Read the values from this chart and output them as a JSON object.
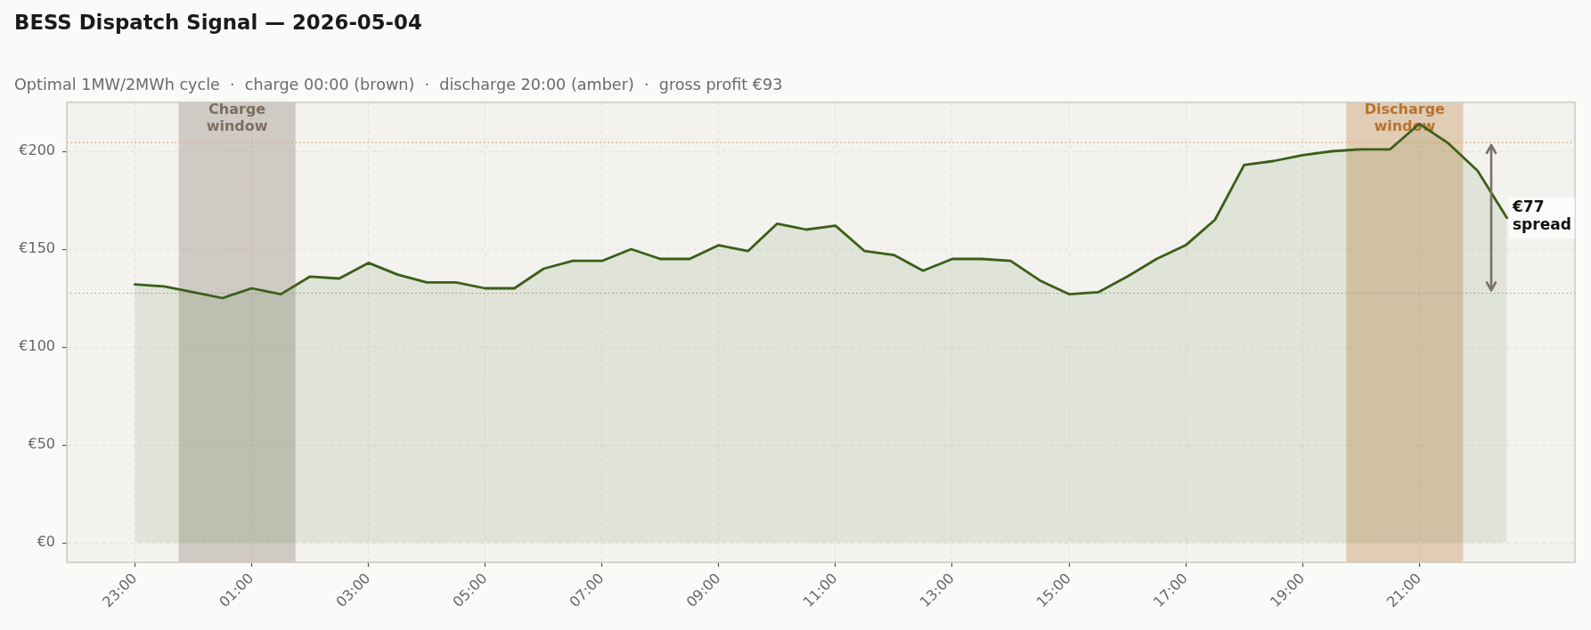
{
  "chart_data": {
    "type": "area",
    "title": "BESS Dispatch Signal — 2026-05-04",
    "subtitle": "Optimal 1MW/2MWh cycle  ·  charge 00:00 (brown)  ·  discharge 20:00 (amber)  ·  gross profit €93",
    "x": [
      "2026-05-03T23:00",
      "2026-05-03T23:30",
      "2026-05-04T00:00",
      "2026-05-04T00:30",
      "2026-05-04T01:00",
      "2026-05-04T01:30",
      "2026-05-04T02:00",
      "2026-05-04T02:30",
      "2026-05-04T03:00",
      "2026-05-04T03:30",
      "2026-05-04T04:00",
      "2026-05-04T04:30",
      "2026-05-04T05:00",
      "2026-05-04T05:30",
      "2026-05-04T06:00",
      "2026-05-04T06:30",
      "2026-05-04T07:00",
      "2026-05-04T07:30",
      "2026-05-04T08:00",
      "2026-05-04T08:30",
      "2026-05-04T09:00",
      "2026-05-04T09:30",
      "2026-05-04T10:00",
      "2026-05-04T10:30",
      "2026-05-04T11:00",
      "2026-05-04T11:30",
      "2026-05-04T12:00",
      "2026-05-04T12:30",
      "2026-05-04T13:00",
      "2026-05-04T13:30",
      "2026-05-04T14:00",
      "2026-05-04T14:30",
      "2026-05-04T15:00",
      "2026-05-04T15:30",
      "2026-05-04T16:00",
      "2026-05-04T16:30",
      "2026-05-04T17:00",
      "2026-05-04T17:30",
      "2026-05-04T18:00",
      "2026-05-04T18:30",
      "2026-05-04T19:00",
      "2026-05-04T19:30",
      "2026-05-04T20:00",
      "2026-05-04T20:30",
      "2026-05-04T21:00",
      "2026-05-04T21:30",
      "2026-05-04T22:00",
      "2026-05-04T22:30"
    ],
    "values": [
      132,
      131,
      128,
      125,
      130,
      127,
      136,
      135,
      143,
      137,
      133,
      133,
      130,
      130,
      140,
      144,
      144,
      150,
      145,
      145,
      152,
      149,
      163,
      160,
      162,
      149,
      147,
      139,
      145,
      145,
      144,
      134,
      127,
      128,
      136,
      145,
      152,
      165,
      193,
      195,
      198,
      200,
      201,
      201,
      214,
      204,
      190,
      166
    ],
    "color": "#3a5f18",
    "xlim": [
      "2026-05-03T21:50",
      "2026-05-04T23:40"
    ],
    "xticks": [
      {
        "value": "2026-05-03T23:00",
        "label": "23:00"
      },
      {
        "value": "2026-05-04T01:00",
        "label": "01:00"
      },
      {
        "value": "2026-05-04T03:00",
        "label": "03:00"
      },
      {
        "value": "2026-05-04T05:00",
        "label": "05:00"
      },
      {
        "value": "2026-05-04T07:00",
        "label": "07:00"
      },
      {
        "value": "2026-05-04T09:00",
        "label": "09:00"
      },
      {
        "value": "2026-05-04T11:00",
        "label": "11:00"
      },
      {
        "value": "2026-05-04T13:00",
        "label": "13:00"
      },
      {
        "value": "2026-05-04T15:00",
        "label": "15:00"
      },
      {
        "value": "2026-05-04T17:00",
        "label": "17:00"
      },
      {
        "value": "2026-05-04T19:00",
        "label": "19:00"
      },
      {
        "value": "2026-05-04T21:00",
        "label": "21:00"
      }
    ],
    "ylim": [
      -10,
      225
    ],
    "yticks": [
      {
        "value": 0,
        "label": "€0"
      },
      {
        "value": 50,
        "label": "€50"
      },
      {
        "value": 100,
        "label": "€100"
      },
      {
        "value": 150,
        "label": "€150"
      },
      {
        "value": 200,
        "label": "€200"
      }
    ],
    "grid": true,
    "bands": [
      {
        "axis": "x",
        "from": "2026-05-03T23:45",
        "to": "2026-05-04T01:45",
        "label": "Charge\nwindow",
        "color": "#7d6e60"
      },
      {
        "axis": "x",
        "from": "2026-05-04T19:45",
        "to": "2026-05-04T21:45",
        "label": "Discharge\nwindow",
        "color": "#b8732e"
      }
    ],
    "ref_lines": [
      {
        "axis": "y",
        "value": 127.5,
        "color": "#a0968a",
        "line_style": "dotted"
      },
      {
        "axis": "y",
        "value": 204.5,
        "color": "#d8a06a",
        "line_style": "dotted"
      }
    ],
    "annotations": [
      "€77\nspread"
    ]
  }
}
